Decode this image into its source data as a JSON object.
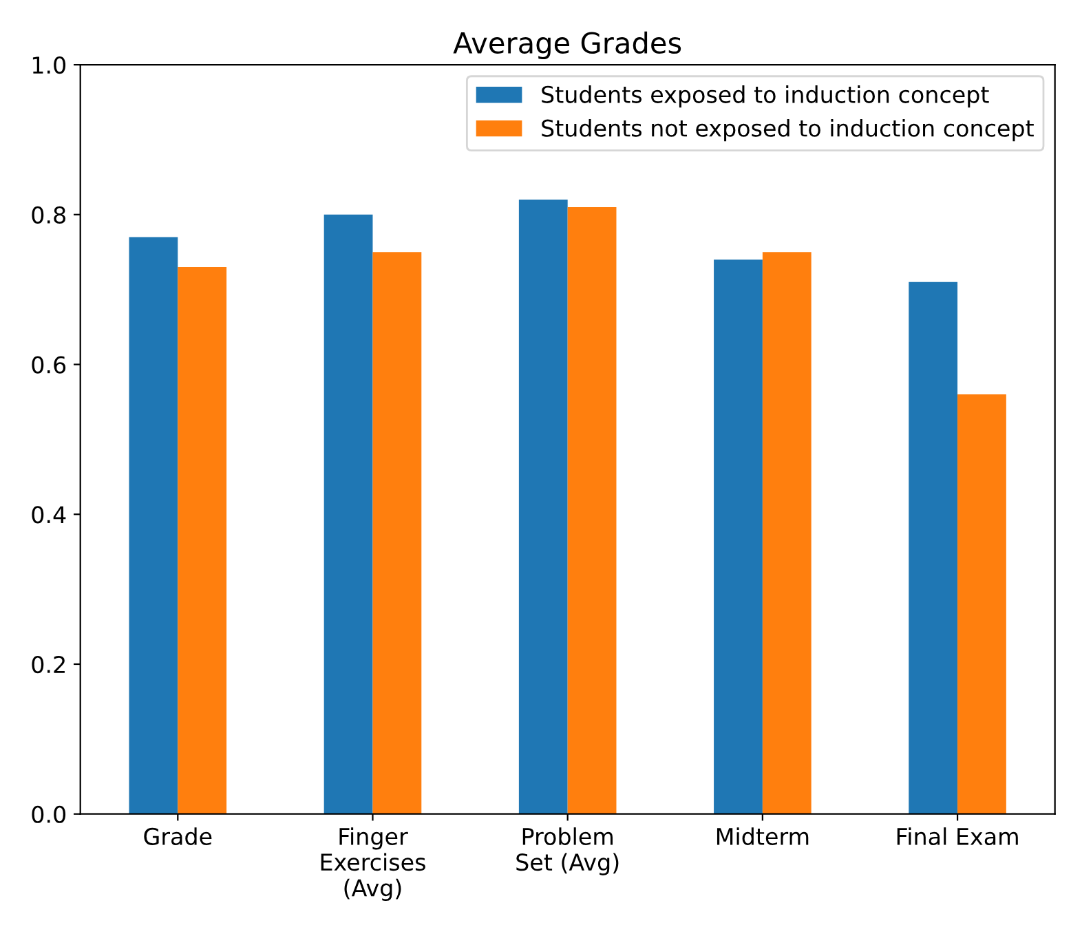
{
  "chart_data": {
    "type": "bar",
    "title": "Average Grades",
    "categories": [
      "Grade",
      "Finger\nExercises\n(Avg)",
      "Problem\nSet (Avg)",
      "Midterm",
      "Final Exam"
    ],
    "series": [
      {
        "name": "Students exposed to induction concept",
        "color": "#1f77b4",
        "values": [
          0.77,
          0.8,
          0.82,
          0.74,
          0.71
        ]
      },
      {
        "name": "Students not exposed to induction concept",
        "color": "#ff7f0e",
        "values": [
          0.73,
          0.75,
          0.81,
          0.75,
          0.56
        ]
      }
    ],
    "ylim": [
      0,
      1.0
    ],
    "yticks": [
      {
        "value": 0,
        "label": "0.0"
      },
      0.2,
      0.4,
      0.6,
      0.8,
      {
        "value": 1,
        "label": "1.0"
      }
    ],
    "grid": false,
    "legend": "top right"
  }
}
